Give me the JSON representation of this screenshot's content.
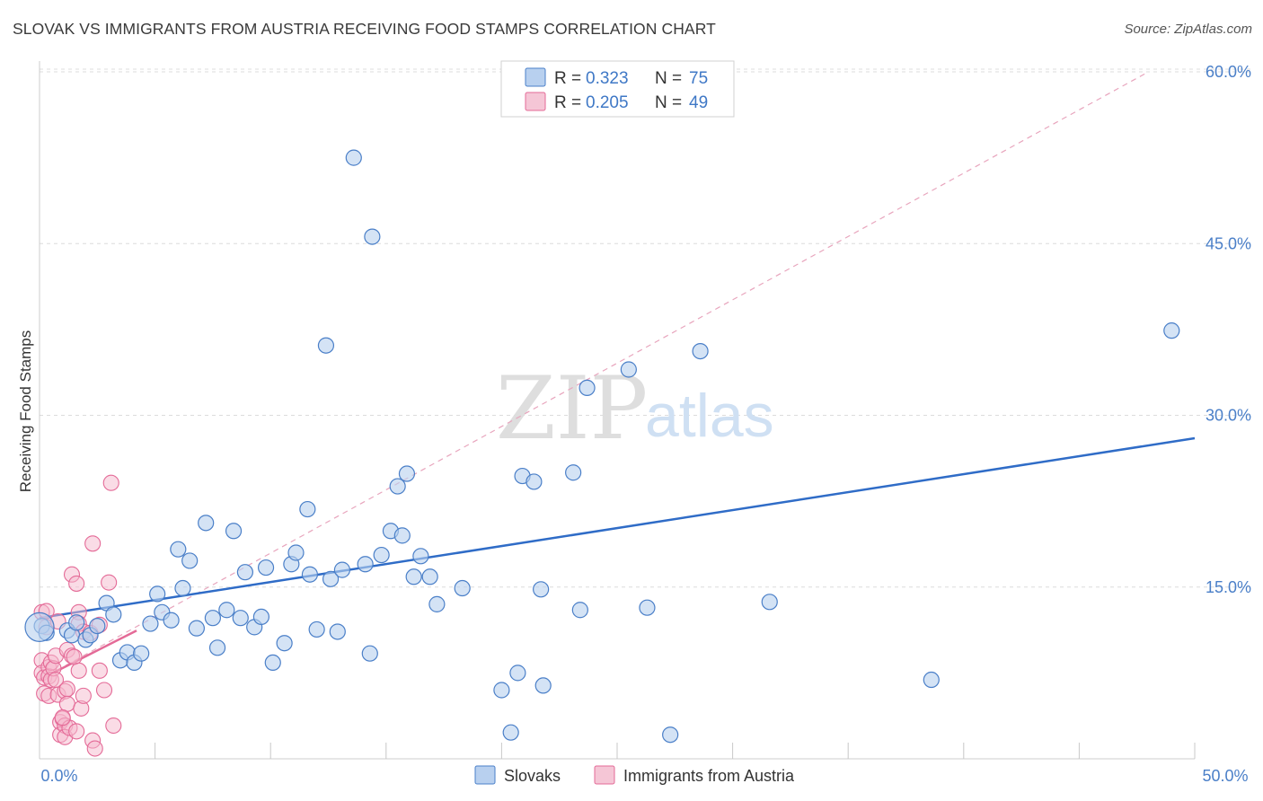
{
  "title": "SLOVAK VS IMMIGRANTS FROM AUSTRIA RECEIVING FOOD STAMPS CORRELATION CHART",
  "source": "Source: ZipAtlas.com",
  "colors": {
    "blue": "#4a7fc8",
    "blue_fill": "#b8d0ef",
    "blue_line": "#2f6cc7",
    "pink": "#e46a97",
    "pink_fill": "#f5b9cd",
    "grid": "#dcdcdc"
  },
  "legend": {
    "series": [
      {
        "r_label": "R =",
        "r_value": "0.323",
        "n_label": "N =",
        "n_value": "75"
      },
      {
        "r_label": "R =",
        "r_value": "0.205",
        "n_label": "N =",
        "n_value": "49"
      }
    ]
  },
  "bottom_legend": [
    "Slovaks",
    "Immigrants from Austria"
  ],
  "watermark": {
    "zip": "ZIP",
    "atlas": "atlas"
  },
  "chart_data": {
    "type": "scatter",
    "title": "SLOVAK VS IMMIGRANTS FROM AUSTRIA RECEIVING FOOD STAMPS CORRELATION CHART",
    "xlabel": "",
    "ylabel": "Receiving Food Stamps",
    "xlim": [
      0,
      50
    ],
    "ylim": [
      0,
      60
    ],
    "x_tick_labels": [
      "0.0%",
      "50.0%"
    ],
    "y_ticks": [
      15,
      30,
      45,
      60
    ],
    "y_tick_labels": [
      "15.0%",
      "30.0%",
      "45.0%",
      "60.0%"
    ],
    "x_minor_ticks": [
      5,
      10,
      15,
      20,
      25,
      30,
      35,
      40,
      45,
      50
    ],
    "legend_position": "top-center",
    "series": [
      {
        "name": "Slovaks",
        "R": 0.323,
        "N": 75,
        "trend": {
          "x": [
            0,
            50
          ],
          "y": [
            12.3,
            28.0
          ],
          "style": "solid"
        },
        "points": [
          [
            0.1,
            11.6
          ],
          [
            0.3,
            11.0
          ],
          [
            1.2,
            11.2
          ],
          [
            1.4,
            10.8
          ],
          [
            1.6,
            11.9
          ],
          [
            2.0,
            10.4
          ],
          [
            2.2,
            10.8
          ],
          [
            2.5,
            11.6
          ],
          [
            2.9,
            13.6
          ],
          [
            3.2,
            12.6
          ],
          [
            3.5,
            8.6
          ],
          [
            3.8,
            9.3
          ],
          [
            4.1,
            8.4
          ],
          [
            4.4,
            9.2
          ],
          [
            4.8,
            11.8
          ],
          [
            5.1,
            14.4
          ],
          [
            5.3,
            12.8
          ],
          [
            5.7,
            12.1
          ],
          [
            6.0,
            18.3
          ],
          [
            6.2,
            14.9
          ],
          [
            6.5,
            17.3
          ],
          [
            6.8,
            11.4
          ],
          [
            7.2,
            20.6
          ],
          [
            7.5,
            12.3
          ],
          [
            7.7,
            9.7
          ],
          [
            8.1,
            13.0
          ],
          [
            8.4,
            19.9
          ],
          [
            8.7,
            12.3
          ],
          [
            8.9,
            16.3
          ],
          [
            9.3,
            11.5
          ],
          [
            9.6,
            12.4
          ],
          [
            9.8,
            16.7
          ],
          [
            10.1,
            8.4
          ],
          [
            10.6,
            10.1
          ],
          [
            10.9,
            17.0
          ],
          [
            11.1,
            18.0
          ],
          [
            11.6,
            21.8
          ],
          [
            11.7,
            16.1
          ],
          [
            12.0,
            11.3
          ],
          [
            12.4,
            36.1
          ],
          [
            12.6,
            15.7
          ],
          [
            12.9,
            11.1
          ],
          [
            13.1,
            16.5
          ],
          [
            13.6,
            52.5
          ],
          [
            14.1,
            17.0
          ],
          [
            14.3,
            9.2
          ],
          [
            14.4,
            45.6
          ],
          [
            14.8,
            17.8
          ],
          [
            15.2,
            19.9
          ],
          [
            15.5,
            23.8
          ],
          [
            15.7,
            19.5
          ],
          [
            15.9,
            24.9
          ],
          [
            16.2,
            15.9
          ],
          [
            16.5,
            17.7
          ],
          [
            16.9,
            15.9
          ],
          [
            17.2,
            13.5
          ],
          [
            18.3,
            14.9
          ],
          [
            20.0,
            6.0
          ],
          [
            20.4,
            2.3
          ],
          [
            20.7,
            7.5
          ],
          [
            20.9,
            24.7
          ],
          [
            21.4,
            24.2
          ],
          [
            21.7,
            14.8
          ],
          [
            21.8,
            6.4
          ],
          [
            23.1,
            25.0
          ],
          [
            23.4,
            13.0
          ],
          [
            23.7,
            32.4
          ],
          [
            25.5,
            34.0
          ],
          [
            26.3,
            13.2
          ],
          [
            27.3,
            2.1
          ],
          [
            28.6,
            35.6
          ],
          [
            31.6,
            13.7
          ],
          [
            38.6,
            6.9
          ],
          [
            49.0,
            37.4
          ],
          [
            0.0,
            11.5
          ]
        ]
      },
      {
        "name": "Immigrants from Austria",
        "R": 0.205,
        "N": 49,
        "trend": {
          "x": [
            0,
            4.2
          ],
          "y": [
            6.9,
            11.2
          ],
          "style": "solid"
        },
        "trend_extended": {
          "x": [
            0,
            48
          ],
          "y": [
            6.9,
            60.0
          ],
          "style": "dashed"
        },
        "points": [
          [
            0.1,
            12.8
          ],
          [
            0.1,
            8.6
          ],
          [
            0.1,
            7.5
          ],
          [
            0.2,
            7.1
          ],
          [
            0.2,
            5.7
          ],
          [
            0.3,
            12.9
          ],
          [
            0.3,
            11.5
          ],
          [
            0.4,
            8.0
          ],
          [
            0.4,
            7.2
          ],
          [
            0.4,
            5.5
          ],
          [
            0.5,
            8.4
          ],
          [
            0.5,
            6.9
          ],
          [
            0.6,
            7.9
          ],
          [
            0.7,
            9.0
          ],
          [
            0.7,
            6.9
          ],
          [
            0.8,
            12.0
          ],
          [
            0.8,
            5.6
          ],
          [
            0.9,
            3.2
          ],
          [
            0.9,
            2.1
          ],
          [
            1.0,
            3.5
          ],
          [
            1.1,
            5.9
          ],
          [
            1.1,
            2.9
          ],
          [
            1.1,
            1.9
          ],
          [
            1.2,
            9.5
          ],
          [
            1.2,
            6.1
          ],
          [
            1.2,
            4.8
          ],
          [
            1.3,
            2.7
          ],
          [
            1.4,
            9.0
          ],
          [
            1.4,
            16.1
          ],
          [
            1.5,
            8.9
          ],
          [
            1.6,
            15.3
          ],
          [
            1.6,
            2.4
          ],
          [
            1.7,
            12.8
          ],
          [
            1.7,
            11.8
          ],
          [
            1.7,
            7.7
          ],
          [
            1.8,
            4.4
          ],
          [
            1.9,
            11.1
          ],
          [
            1.9,
            5.5
          ],
          [
            2.2,
            11.0
          ],
          [
            2.3,
            1.6
          ],
          [
            2.3,
            18.8
          ],
          [
            2.4,
            0.9
          ],
          [
            2.6,
            11.7
          ],
          [
            2.6,
            7.7
          ],
          [
            2.8,
            6.0
          ],
          [
            3.0,
            15.4
          ],
          [
            3.1,
            24.1
          ],
          [
            3.2,
            2.9
          ],
          [
            1.0,
            3.6
          ]
        ]
      }
    ]
  }
}
